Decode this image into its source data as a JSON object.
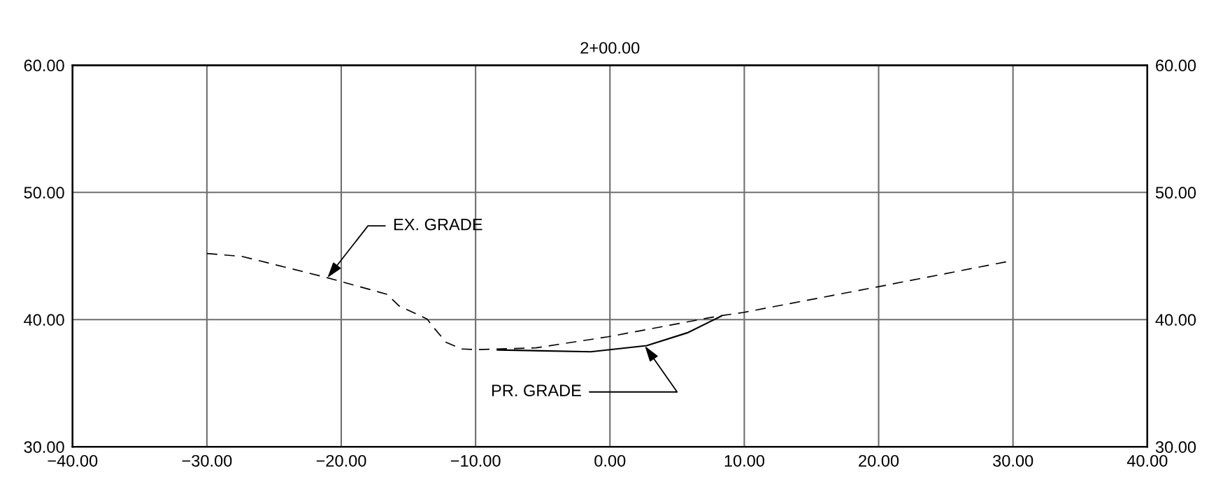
{
  "chart_data": {
    "type": "line",
    "title": "2+00.00",
    "series": [
      {
        "color": "#000000",
        "line_style": "dashed",
        "x": [
          -30.0,
          -27.36,
          -21.03,
          -16.6,
          -15.7,
          -13.6,
          -13.3,
          -12.19,
          -11.06,
          -9.84,
          -5.5,
          -0.13,
          8.2,
          9.93,
          20.0,
          29.97
        ],
        "values": [
          45.2,
          44.96,
          43.29,
          41.99,
          41.08,
          40.04,
          39.6,
          38.21,
          37.69,
          37.64,
          37.78,
          38.65,
          40.3,
          40.56,
          42.59,
          44.64
        ]
      },
      {
        "color": "#000000",
        "line_style": "solid",
        "x": [
          -8.37,
          -1.43,
          2.73,
          5.76,
          8.28
        ],
        "values": [
          37.61,
          37.47,
          37.95,
          38.96,
          40.27
        ]
      }
    ],
    "annotations": [
      {
        "text": "EX. GRADE",
        "x": -21.03,
        "y": 43.29
      },
      {
        "text": "PR. GRADE",
        "x": 2.6,
        "y": 37.93
      }
    ],
    "xlim": [
      -40,
      40
    ],
    "ylim": [
      30,
      60
    ],
    "y2lim": [
      30,
      60
    ],
    "xticks": [
      {
        "value": -40,
        "label": "−40.00"
      },
      {
        "value": -30,
        "label": "−30.00"
      },
      {
        "value": -20,
        "label": "−20.00"
      },
      {
        "value": -10,
        "label": "−10.00"
      },
      {
        "value": 0,
        "label": "0.00"
      },
      {
        "value": 10,
        "label": "10.00"
      },
      {
        "value": 20,
        "label": "20.00"
      },
      {
        "value": 30,
        "label": "30.00"
      },
      {
        "value": 40,
        "label": "40.00"
      }
    ],
    "yticks": [
      {
        "value": 30,
        "label": "30.00"
      },
      {
        "value": 40,
        "label": "40.00"
      },
      {
        "value": 50,
        "label": "50.00"
      },
      {
        "value": 60,
        "label": "60.00"
      }
    ],
    "y2ticks": [
      {
        "value": 30,
        "label": "30.00"
      },
      {
        "value": 40,
        "label": "40.00"
      },
      {
        "value": 50,
        "label": "50.00"
      },
      {
        "value": 60,
        "label": "60.00"
      }
    ],
    "grid": true,
    "legend": false
  }
}
